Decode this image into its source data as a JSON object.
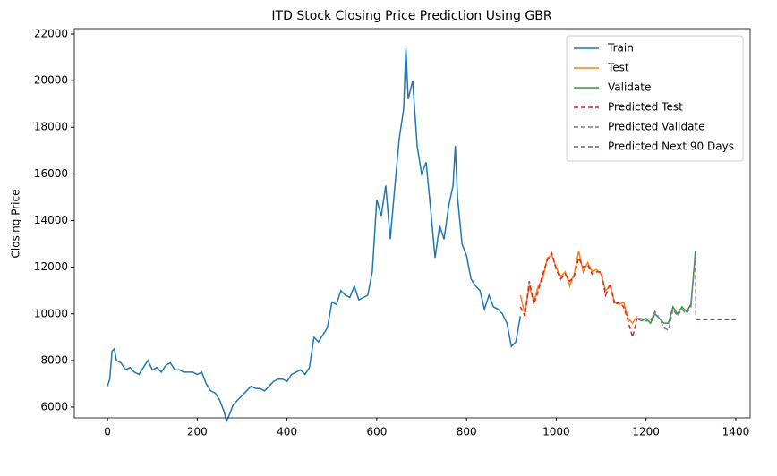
{
  "chart_data": {
    "type": "line",
    "title": "ITD Stock Closing Price Prediction Using GBR",
    "ylabel": "Closing Price",
    "xlim": [
      -74,
      1432
    ],
    "ylim": [
      5540,
      22230
    ],
    "xticks": [
      0,
      200,
      400,
      600,
      800,
      1000,
      1200,
      1400
    ],
    "yticks": [
      6000,
      8000,
      10000,
      12000,
      14000,
      16000,
      18000,
      20000,
      22000
    ],
    "grid": false,
    "legend": "upper right",
    "series": [
      {
        "name": "Train",
        "color": "#1f77b4",
        "dashed": false,
        "x": [
          0,
          5,
          10,
          15,
          20,
          30,
          40,
          50,
          60,
          70,
          80,
          90,
          100,
          110,
          120,
          130,
          140,
          150,
          160,
          170,
          180,
          190,
          200,
          210,
          220,
          230,
          240,
          250,
          260,
          265,
          270,
          280,
          290,
          300,
          310,
          320,
          330,
          340,
          350,
          360,
          370,
          380,
          390,
          400,
          410,
          420,
          430,
          440,
          450,
          460,
          470,
          480,
          490,
          500,
          510,
          520,
          530,
          540,
          550,
          560,
          570,
          580,
          590,
          600,
          610,
          620,
          630,
          640,
          650,
          660,
          665,
          670,
          680,
          690,
          700,
          710,
          720,
          730,
          740,
          750,
          760,
          770,
          775,
          780,
          790,
          800,
          810,
          820,
          830,
          840,
          850,
          860,
          870,
          880,
          890,
          900,
          910,
          920
        ],
        "values": [
          6900,
          7200,
          8400,
          8500,
          8000,
          7900,
          7600,
          7700,
          7500,
          7400,
          7700,
          8000,
          7600,
          7700,
          7500,
          7800,
          7900,
          7600,
          7600,
          7500,
          7500,
          7500,
          7400,
          7500,
          7000,
          6700,
          6600,
          6300,
          5800,
          5400,
          5600,
          6100,
          6300,
          6500,
          6700,
          6900,
          6800,
          6800,
          6700,
          6900,
          7100,
          7200,
          7200,
          7100,
          7400,
          7500,
          7600,
          7400,
          7700,
          9000,
          8800,
          9100,
          9400,
          10500,
          10400,
          11000,
          10800,
          10700,
          11200,
          10600,
          10700,
          10800,
          11800,
          14900,
          14200,
          15500,
          13200,
          15400,
          17500,
          18800,
          21400,
          19200,
          20000,
          17200,
          16000,
          16500,
          14500,
          12400,
          13800,
          13200,
          14600,
          15500,
          17200,
          15000,
          13000,
          12500,
          11500,
          11200,
          11000,
          10200,
          10800,
          10300,
          10200,
          10000,
          9600,
          8600,
          8800,
          9900
        ]
      },
      {
        "name": "Test",
        "color": "#ff7f0e",
        "dashed": false,
        "x": [
          920,
          930,
          940,
          950,
          960,
          970,
          980,
          990,
          1000,
          1010,
          1020,
          1030,
          1040,
          1050,
          1060,
          1070,
          1080,
          1090,
          1100,
          1110,
          1120,
          1130,
          1140,
          1150,
          1160,
          1170,
          1180
        ],
        "values": [
          10800,
          10000,
          11200,
          10500,
          11200,
          11500,
          12400,
          12500,
          12000,
          11600,
          11800,
          11200,
          11700,
          12700,
          11800,
          12200,
          11800,
          11900,
          11700,
          11000,
          11200,
          10500,
          10400,
          10500,
          9800,
          9600,
          9900
        ]
      },
      {
        "name": "Validate",
        "color": "#2ca02c",
        "dashed": false,
        "x": [
          1180,
          1190,
          1200,
          1210,
          1220,
          1230,
          1240,
          1250,
          1260,
          1270,
          1280,
          1290,
          1300,
          1305,
          1310
        ],
        "values": [
          9800,
          9700,
          9800,
          9600,
          10000,
          9800,
          9600,
          9600,
          10300,
          10000,
          10300,
          10100,
          10400,
          11500,
          12700
        ]
      },
      {
        "name": "Predicted Test",
        "color": "#d62728",
        "dashed": true,
        "x": [
          920,
          930,
          940,
          950,
          960,
          970,
          980,
          990,
          1000,
          1010,
          1020,
          1030,
          1040,
          1050,
          1060,
          1070,
          1080,
          1090,
          1100,
          1110,
          1120,
          1130,
          1140,
          1150,
          1160,
          1170,
          1180
        ],
        "values": [
          10300,
          9900,
          11400,
          10400,
          11000,
          11700,
          12300,
          12600,
          11900,
          11500,
          11700,
          11400,
          11600,
          12400,
          12000,
          12100,
          11700,
          11800,
          11800,
          10800,
          11300,
          10400,
          10500,
          10300,
          9700,
          9000,
          9800
        ]
      },
      {
        "name": "Predicted Validate",
        "color": "#9467bd",
        "dashed": true,
        "x": [
          1180,
          1190,
          1200,
          1210,
          1220,
          1230,
          1240,
          1250,
          1260,
          1270,
          1280,
          1290,
          1300,
          1305,
          1310,
          1311
        ],
        "values": [
          9800,
          9800,
          9700,
          9700,
          10100,
          9800,
          9400,
          9300,
          10200,
          9900,
          10200,
          10000,
          10300,
          11400,
          12500,
          9750
        ]
      },
      {
        "name": "Predicted Next 90 Days",
        "color": "#8c564b",
        "dashed": true,
        "x": [
          1311,
          1400
        ],
        "values": [
          9750,
          9750
        ]
      }
    ]
  }
}
